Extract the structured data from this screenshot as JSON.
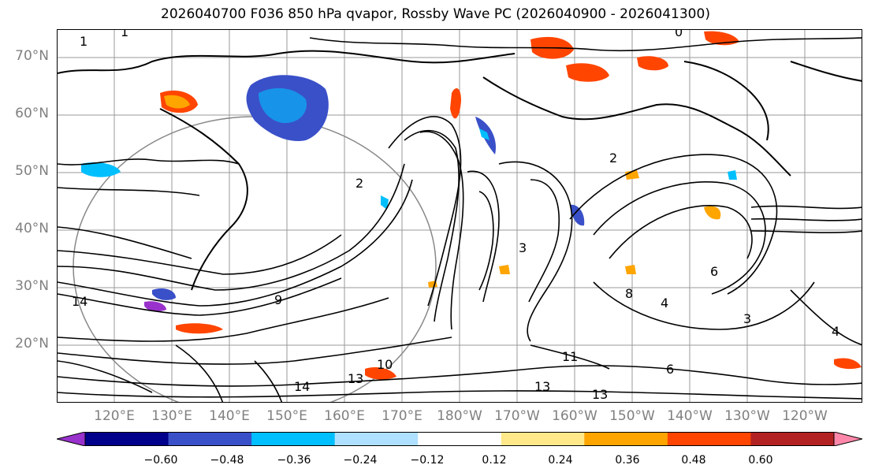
{
  "title": "2026040700 F036 850 hPa qvapor, Rossby Wave PC (2026040900 - 2026041300)",
  "lat_labels": [
    "70°N",
    "60°N",
    "50°N",
    "40°N",
    "30°N",
    "20°N"
  ],
  "lon_labels": [
    "120°E",
    "130°E",
    "140°E",
    "150°E",
    "160°E",
    "170°E",
    "180°W",
    "170°W",
    "160°W",
    "150°W",
    "140°W",
    "130°W",
    "120°W"
  ],
  "colorbar": {
    "ticks": [
      "−0.60",
      "−0.48",
      "−0.36",
      "−0.24",
      "−0.12",
      "0.12",
      "0.24",
      "0.36",
      "0.48",
      "0.60"
    ],
    "colors": [
      "#9932cc",
      "#00008b",
      "#3a50c8",
      "#00bfff",
      "#b0e0ff",
      "#ffffff",
      "#ffe88a",
      "#ffa500",
      "#ff4500",
      "#b22222",
      "#ff88aa"
    ]
  },
  "contour_labels": [
    "1",
    "2",
    "3",
    "4",
    "6",
    "8",
    "9",
    "10",
    "11",
    "13",
    "14"
  ],
  "contour_label_instances": [
    {
      "text": "1"
    },
    {
      "text": "1"
    },
    {
      "text": "0"
    },
    {
      "text": "2"
    },
    {
      "text": "2"
    },
    {
      "text": "3"
    },
    {
      "text": "4"
    },
    {
      "text": "6"
    },
    {
      "text": "6"
    },
    {
      "text": "8"
    },
    {
      "text": "9"
    },
    {
      "text": "10"
    },
    {
      "text": "11"
    },
    {
      "text": "13"
    },
    {
      "text": "13"
    },
    {
      "text": "13"
    },
    {
      "text": "14"
    },
    {
      "text": "14"
    },
    {
      "text": "4"
    },
    {
      "text": "3"
    }
  ]
}
